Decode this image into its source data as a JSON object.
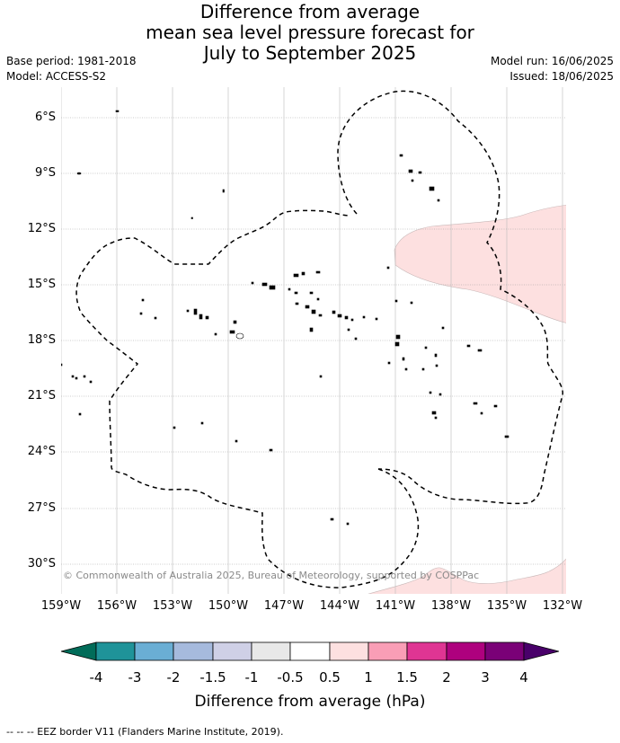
{
  "title": {
    "line1": "Difference from average",
    "line2": "mean sea level pressure forecast for",
    "line3": "July to September 2025"
  },
  "meta": {
    "base_period": "Base period: 1981-2018",
    "model": "Model: ACCESS-S2",
    "model_run": "Model run: 16/06/2025",
    "issued": "Issued: 18/06/2025"
  },
  "map": {
    "lat_ticks": [
      "6°S",
      "9°S",
      "12°S",
      "15°S",
      "18°S",
      "21°S",
      "24°S",
      "27°S",
      "30°S"
    ],
    "lon_ticks": [
      "159°W",
      "156°W",
      "153°W",
      "150°W",
      "147°W",
      "144°W",
      "141°W",
      "138°W",
      "135°W",
      "132°W"
    ],
    "copyright": "© Commonwealth of Australia 2025, Bureau of Meteorology, supported by COSPPac",
    "anomaly_fill_color": "#fde0e0"
  },
  "colorbar": {
    "ticks": [
      "-4",
      "-3",
      "-2",
      "-1.5",
      "-1",
      "-0.5",
      "0.5",
      "1",
      "1.5",
      "2",
      "3",
      "4"
    ],
    "colors": [
      "#1f9399",
      "#6aaed4",
      "#a6badd",
      "#cfd0e6",
      "#e8e8e8",
      "#ffffff",
      "#fde0e0",
      "#f99eb6",
      "#df3593",
      "#ae017e",
      "#7a0177"
    ],
    "under_color": "#016c59",
    "over_color": "#49006a",
    "label": "Difference from average (hPa)"
  },
  "footnote": "--  --  -- EEZ border V11 (Flanders Marine Institute, 2019)."
}
